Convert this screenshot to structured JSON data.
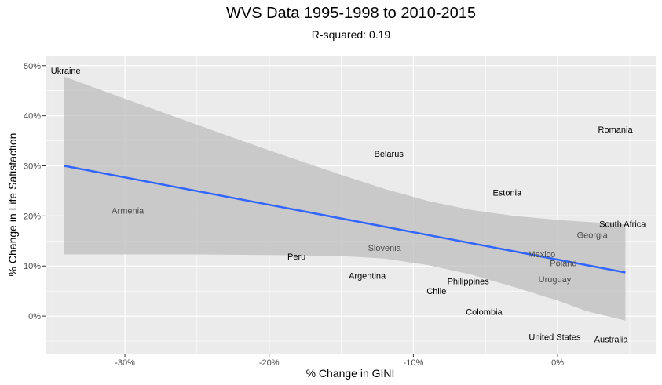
{
  "chart_data": {
    "type": "scatter",
    "title": "WVS Data 1995-1998 to 2010-2015",
    "subtitle": "R-squared: 0.19",
    "xlabel": "% Change in GINI",
    "ylabel": "% Change in Life Satisfaction",
    "xlim": [
      -35.5,
      6.8
    ],
    "ylim": [
      -7.5,
      52.0
    ],
    "x_ticks": [
      {
        "value": -30,
        "label": "-30%"
      },
      {
        "value": -20,
        "label": "-20%"
      },
      {
        "value": -10,
        "label": "-10%"
      },
      {
        "value": 0,
        "label": "0%"
      }
    ],
    "y_ticks": [
      {
        "value": 0,
        "label": "0%"
      },
      {
        "value": 10,
        "label": "10%"
      },
      {
        "value": 20,
        "label": "20%"
      },
      {
        "value": 30,
        "label": "30%"
      },
      {
        "value": 40,
        "label": "40%"
      },
      {
        "value": 50,
        "label": "50%"
      }
    ],
    "grid": true,
    "points": [
      {
        "label": "Ukraine",
        "x": -34.1,
        "y": 49.0,
        "color": "#000000"
      },
      {
        "label": "Romania",
        "x": 4.0,
        "y": 37.3,
        "color": "#000000"
      },
      {
        "label": "Belarus",
        "x": -11.7,
        "y": 32.4,
        "color": "#000000"
      },
      {
        "label": "Estonia",
        "x": -3.5,
        "y": 24.7,
        "color": "#000000"
      },
      {
        "label": "Armenia",
        "x": -29.8,
        "y": 21.1,
        "color": "#4d4d4d"
      },
      {
        "label": "South Africa",
        "x": 4.5,
        "y": 18.4,
        "color": "#000000"
      },
      {
        "label": "Georgia",
        "x": 2.4,
        "y": 16.2,
        "color": "#4d4d4d"
      },
      {
        "label": "Slovenia",
        "x": -12.0,
        "y": 13.6,
        "color": "#4d4d4d"
      },
      {
        "label": "Peru",
        "x": -18.1,
        "y": 11.9,
        "color": "#000000"
      },
      {
        "label": "Mexico",
        "x": -1.1,
        "y": 12.4,
        "color": "#4d4d4d"
      },
      {
        "label": "Poland",
        "x": 0.4,
        "y": 10.6,
        "color": "#4d4d4d"
      },
      {
        "label": "Argentina",
        "x": -13.2,
        "y": 8.1,
        "color": "#000000"
      },
      {
        "label": "Uruguay",
        "x": -0.2,
        "y": 7.4,
        "color": "#4d4d4d"
      },
      {
        "label": "Philippines",
        "x": -6.2,
        "y": 7.0,
        "color": "#000000"
      },
      {
        "label": "Chile",
        "x": -8.4,
        "y": 5.0,
        "color": "#000000"
      },
      {
        "label": "Colombia",
        "x": -5.1,
        "y": 0.9,
        "color": "#000000"
      },
      {
        "label": "United States",
        "x": -0.2,
        "y": -4.1,
        "color": "#000000"
      },
      {
        "label": "Australia",
        "x": 3.7,
        "y": -4.6,
        "color": "#000000"
      }
    ],
    "fit_line": {
      "color": "#3366ff",
      "x": [
        -34.2,
        4.7
      ],
      "y": [
        30.0,
        8.7
      ]
    },
    "confidence_band": {
      "color": "#bdbdbd",
      "x": [
        -34.2,
        -30,
        -25,
        -20,
        -15,
        -12,
        -9,
        -6,
        -3,
        0,
        2,
        4.7
      ],
      "upper": [
        47.8,
        43.4,
        38.2,
        33.1,
        28.2,
        25.4,
        23.0,
        21.2,
        20.0,
        19.2,
        18.8,
        18.3
      ],
      "lower": [
        12.3,
        12.3,
        12.3,
        12.2,
        12.0,
        11.5,
        10.2,
        8.3,
        5.8,
        3.1,
        1.0,
        -0.9
      ]
    },
    "colors": {
      "panel_background": "#ebebeb",
      "grid_major": "#ffffff",
      "axis_tick_text": "#4d4d4d"
    }
  }
}
